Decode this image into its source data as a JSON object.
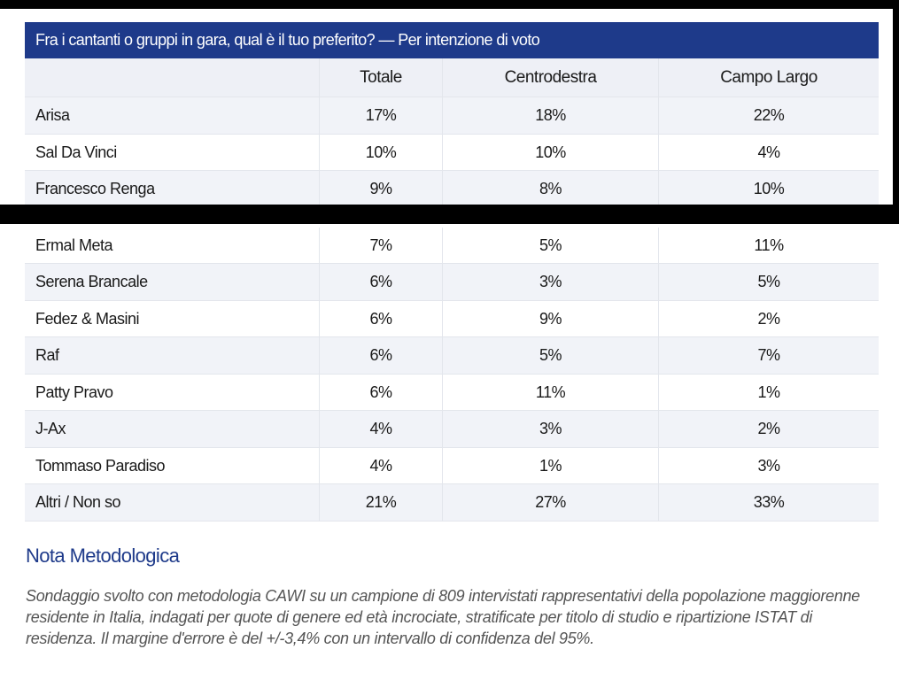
{
  "table": {
    "title": "Fra i cantanti o gruppi in gara, qual è il tuo preferito? — Per intenzione di voto",
    "columns": [
      "",
      "Totale",
      "Centrodestra",
      "Campo Largo"
    ],
    "rows_top": [
      [
        "Arisa",
        "17%",
        "18%",
        "22%"
      ],
      [
        "Sal Da Vinci",
        "10%",
        "10%",
        "4%"
      ],
      [
        "Francesco Renga",
        "9%",
        "8%",
        "10%"
      ]
    ],
    "rows_bottom": [
      [
        "Ermal Meta",
        "7%",
        "5%",
        "11%"
      ],
      [
        "Serena Brancale",
        "6%",
        "3%",
        "5%"
      ],
      [
        "Fedez & Masini",
        "6%",
        "9%",
        "2%"
      ],
      [
        "Raf",
        "6%",
        "5%",
        "7%"
      ],
      [
        "Patty Pravo",
        "6%",
        "11%",
        "1%"
      ],
      [
        "J-Ax",
        "4%",
        "3%",
        "2%"
      ],
      [
        "Tommaso Paradiso",
        "4%",
        "1%",
        "3%"
      ],
      [
        "Altri / Non so",
        "21%",
        "27%",
        "33%"
      ]
    ]
  },
  "nota": {
    "heading": "Nota Metodologica",
    "text": "Sondaggio svolto con metodologia CAWI su un campione di 809 intervistati rappresentativi della popolazione maggiorenne residente in Italia, indagati per quote di genere ed età incrociate, stratificate per titolo di studio e ripartizione ISTAT di residenza. Il margine d'errore è del +/-3,4% con un intervallo di confidenza del 95%."
  },
  "colors": {
    "header_bg": "#1e3a8a",
    "heading": "#1e3a8a",
    "row_shade": "#f1f3f8"
  }
}
